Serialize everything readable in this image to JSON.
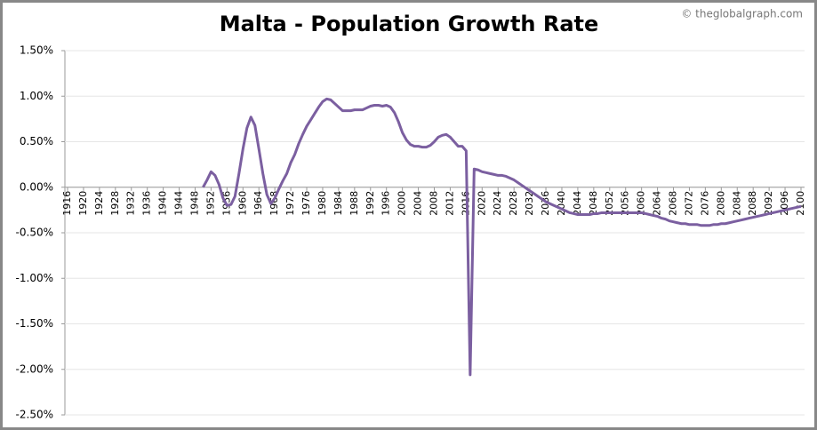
{
  "chart_data": {
    "type": "line",
    "title": "Malta - Population Growth Rate",
    "credit": "© theglobalgraph.com",
    "x": [
      1950,
      1951,
      1952,
      1953,
      1954,
      1955,
      1956,
      1957,
      1958,
      1959,
      1960,
      1961,
      1962,
      1963,
      1964,
      1965,
      1966,
      1967,
      1968,
      1969,
      1970,
      1971,
      1972,
      1973,
      1974,
      1975,
      1976,
      1977,
      1978,
      1979,
      1980,
      1981,
      1982,
      1983,
      1984,
      1985,
      1986,
      1987,
      1988,
      1989,
      1990,
      1991,
      1992,
      1993,
      1994,
      1995,
      1996,
      1997,
      1998,
      1999,
      2000,
      2001,
      2002,
      2003,
      2004,
      2005,
      2006,
      2007,
      2008,
      2009,
      2010,
      2011,
      2012,
      2013,
      2014,
      2015,
      2016,
      2017,
      2018,
      2019,
      2020,
      2021,
      2022,
      2023,
      2024,
      2025,
      2026,
      2027,
      2028,
      2029,
      2030,
      2031,
      2032,
      2033,
      2034,
      2035,
      2036,
      2037,
      2038,
      2039,
      2040,
      2041,
      2042,
      2043,
      2044,
      2045,
      2046,
      2047,
      2048,
      2049,
      2050,
      2051,
      2052,
      2053,
      2054,
      2055,
      2056,
      2057,
      2058,
      2059,
      2060,
      2061,
      2062,
      2063,
      2064,
      2065,
      2066,
      2067,
      2068,
      2069,
      2070,
      2071,
      2072,
      2073,
      2074,
      2075,
      2076,
      2077,
      2078,
      2079,
      2080,
      2081,
      2082,
      2083,
      2084,
      2085,
      2086,
      2087,
      2088,
      2089,
      2090,
      2091,
      2092,
      2093,
      2094,
      2095,
      2096,
      2097,
      2098,
      2099,
      2100
    ],
    "series": [
      {
        "color": "#7b5fa0",
        "values": [
          0,
          0.08,
          0.17,
          0.13,
          0.03,
          -0.12,
          -0.2,
          -0.19,
          -0.1,
          0.15,
          0.42,
          0.65,
          0.77,
          0.68,
          0.42,
          0.15,
          -0.08,
          -0.18,
          -0.12,
          -0.02,
          0.07,
          0.15,
          0.27,
          0.36,
          0.48,
          0.58,
          0.67,
          0.74,
          0.81,
          0.88,
          0.94,
          0.97,
          0.96,
          0.92,
          0.88,
          0.84,
          0.84,
          0.84,
          0.85,
          0.85,
          0.85,
          0.87,
          0.89,
          0.9,
          0.9,
          0.89,
          0.9,
          0.88,
          0.82,
          0.72,
          0.6,
          0.52,
          0.47,
          0.45,
          0.45,
          0.44,
          0.44,
          0.46,
          0.5,
          0.55,
          0.57,
          0.58,
          0.55,
          0.5,
          0.45,
          0.45,
          0.4,
          -2.06,
          0.2,
          0.19,
          0.17,
          0.16,
          0.15,
          0.14,
          0.13,
          0.13,
          0.12,
          0.1,
          0.08,
          0.05,
          0.02,
          -0.01,
          -0.04,
          -0.07,
          -0.1,
          -0.13,
          -0.16,
          -0.18,
          -0.2,
          -0.22,
          -0.24,
          -0.26,
          -0.28,
          -0.29,
          -0.3,
          -0.3,
          -0.3,
          -0.3,
          -0.29,
          -0.29,
          -0.28,
          -0.28,
          -0.28,
          -0.28,
          -0.28,
          -0.28,
          -0.28,
          -0.28,
          -0.28,
          -0.28,
          -0.28,
          -0.29,
          -0.3,
          -0.31,
          -0.32,
          -0.34,
          -0.35,
          -0.37,
          -0.38,
          -0.39,
          -0.4,
          -0.4,
          -0.41,
          -0.41,
          -0.41,
          -0.42,
          -0.42,
          -0.42,
          -0.41,
          -0.41,
          -0.4,
          -0.4,
          -0.39,
          -0.38,
          -0.37,
          -0.36,
          -0.35,
          -0.34,
          -0.33,
          -0.32,
          -0.31,
          -0.3,
          -0.29,
          -0.28,
          -0.27,
          -0.26,
          -0.25,
          -0.24,
          -0.23,
          -0.22,
          -0.21
        ]
      }
    ],
    "xlim": [
      1916,
      2100
    ],
    "xticks": [
      1916,
      1920,
      1924,
      1928,
      1932,
      1936,
      1940,
      1944,
      1948,
      1952,
      1956,
      1960,
      1964,
      1968,
      1972,
      1976,
      1980,
      1984,
      1988,
      1992,
      1996,
      2000,
      2004,
      2008,
      2012,
      2016,
      2020,
      2024,
      2028,
      2032,
      2036,
      2040,
      2044,
      2048,
      2052,
      2056,
      2060,
      2064,
      2068,
      2072,
      2076,
      2080,
      2084,
      2088,
      2092,
      2096,
      2100
    ],
    "ylim": [
      -2.5,
      1.5
    ],
    "yticks": [
      {
        "value": 1.5,
        "label": "1.50%"
      },
      {
        "value": 1.0,
        "label": "1.00%"
      },
      {
        "value": 0.5,
        "label": "0.50%"
      },
      {
        "value": 0,
        "label": "0.00%"
      },
      {
        "value": -0.5,
        "label": "-0.50%"
      },
      {
        "value": -1.0,
        "label": "-1.00%"
      },
      {
        "value": -1.5,
        "label": "-1.50%"
      },
      {
        "value": -2.0,
        "label": "-2.00%"
      },
      {
        "value": -2.5,
        "label": "-2.50%"
      }
    ],
    "grid": true
  }
}
